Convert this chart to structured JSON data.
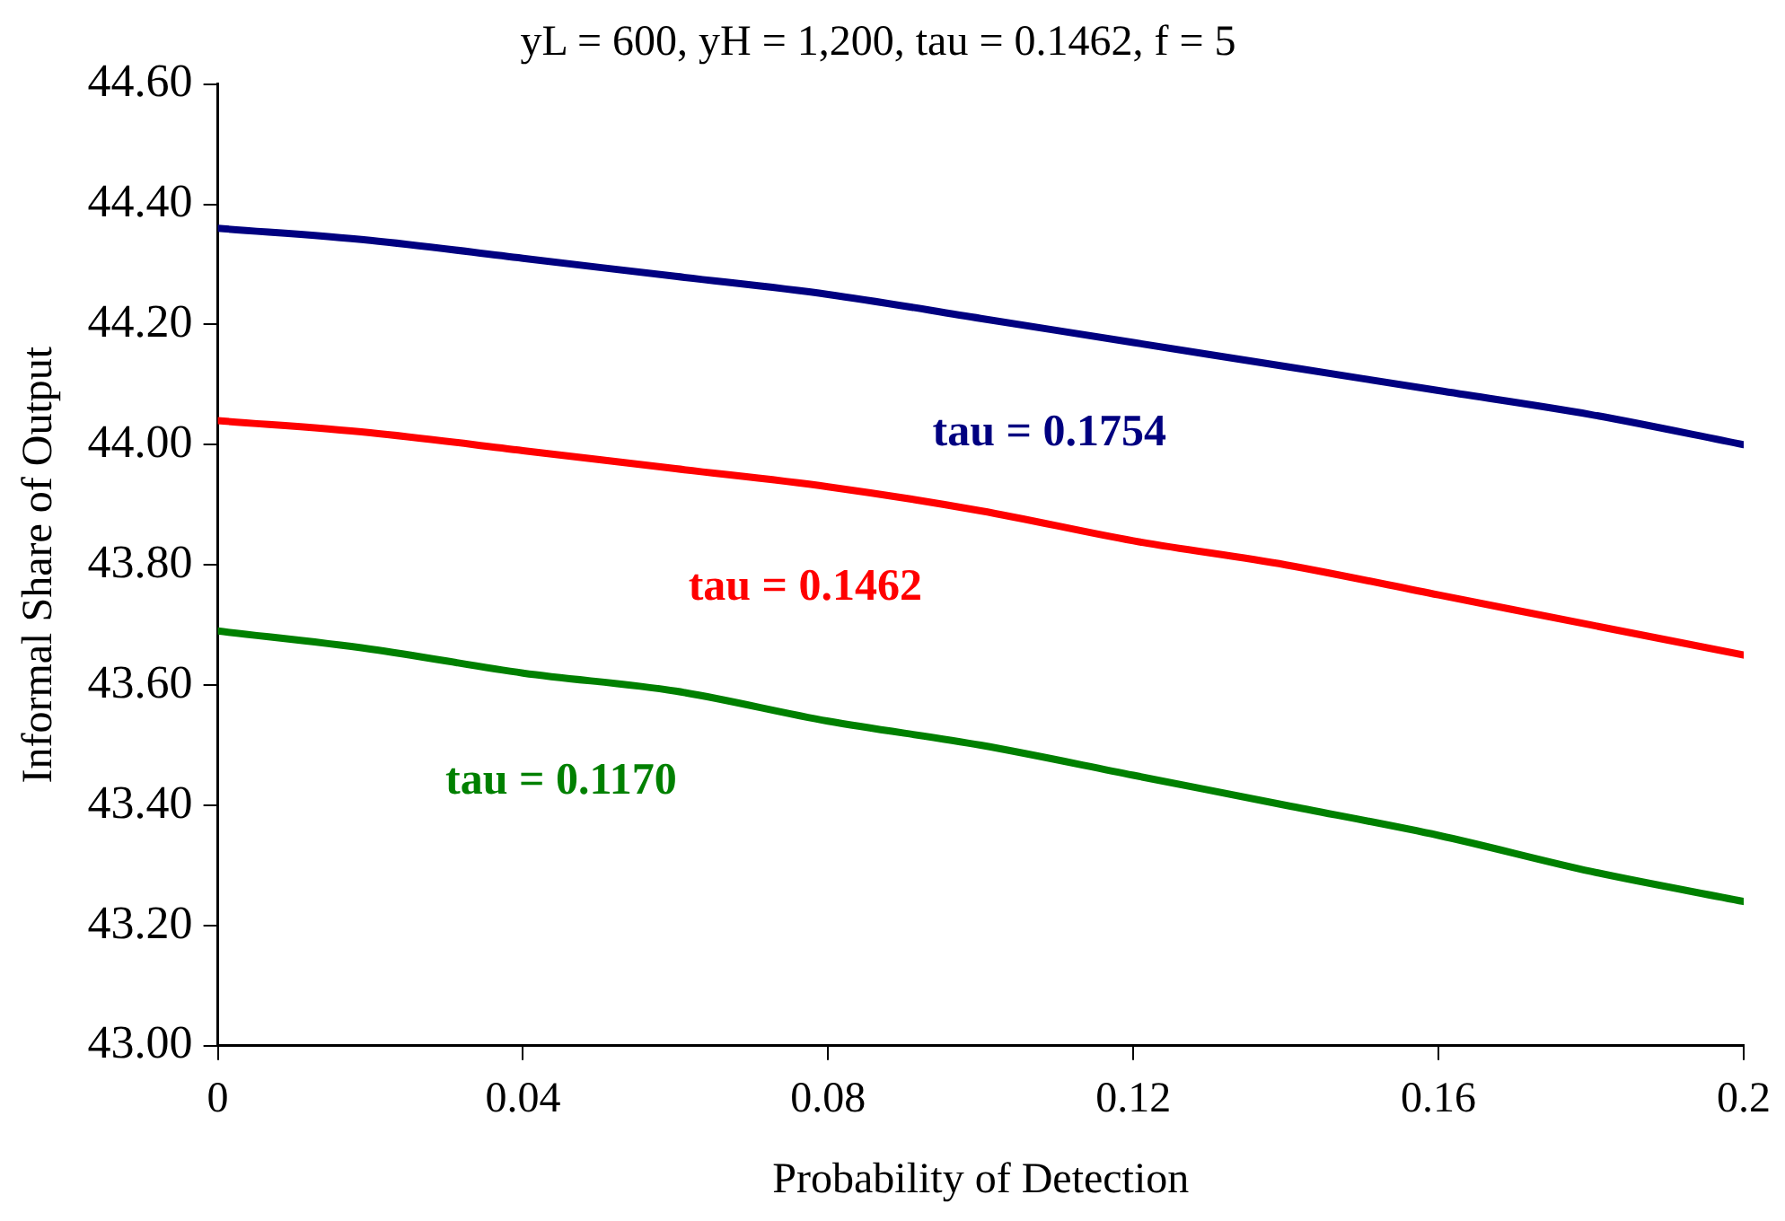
{
  "chart_data": {
    "type": "line",
    "title": "yL = 600, yH = 1,200, tau = 0.1462, f = 5",
    "xlabel": "Probability of Detection",
    "ylabel": "Informal Share of Output",
    "x": [
      0,
      0.02,
      0.04,
      0.06,
      0.08,
      0.1,
      0.12,
      0.14,
      0.16,
      0.18,
      0.2
    ],
    "series": [
      {
        "name": "tau = 0.1754",
        "color": "#000080",
        "values": [
          44.36,
          44.34,
          44.31,
          44.28,
          44.25,
          44.21,
          44.17,
          44.13,
          44.09,
          44.05,
          44.0
        ]
      },
      {
        "name": "tau = 0.1462",
        "color": "#ff0000",
        "values": [
          44.04,
          44.02,
          43.99,
          43.96,
          43.93,
          43.89,
          43.84,
          43.8,
          43.75,
          43.7,
          43.65
        ]
      },
      {
        "name": "tau = 0.1170",
        "color": "#008000",
        "values": [
          43.69,
          43.66,
          43.62,
          43.59,
          43.54,
          43.5,
          43.45,
          43.4,
          43.35,
          43.29,
          43.24
        ]
      }
    ],
    "xlim": [
      0,
      0.2
    ],
    "xticks": [
      0,
      0.04,
      0.08,
      0.12,
      0.16,
      0.2
    ],
    "ylim": [
      43.0,
      44.6
    ],
    "yticks": [
      {
        "value": 43.0,
        "label": "43.00"
      },
      {
        "value": 43.2,
        "label": "43.20"
      },
      {
        "value": 43.4,
        "label": "43.40"
      },
      {
        "value": 43.6,
        "label": "43.60"
      },
      {
        "value": 43.8,
        "label": "43.80"
      },
      {
        "value": 44.0,
        "label": "44.00"
      },
      {
        "value": 44.2,
        "label": "44.20"
      },
      {
        "value": 44.4,
        "label": "44.40"
      },
      {
        "value": 44.6,
        "label": "44.60"
      }
    ],
    "grid": false,
    "legend": false,
    "marker": "none",
    "line_style": "solid"
  }
}
